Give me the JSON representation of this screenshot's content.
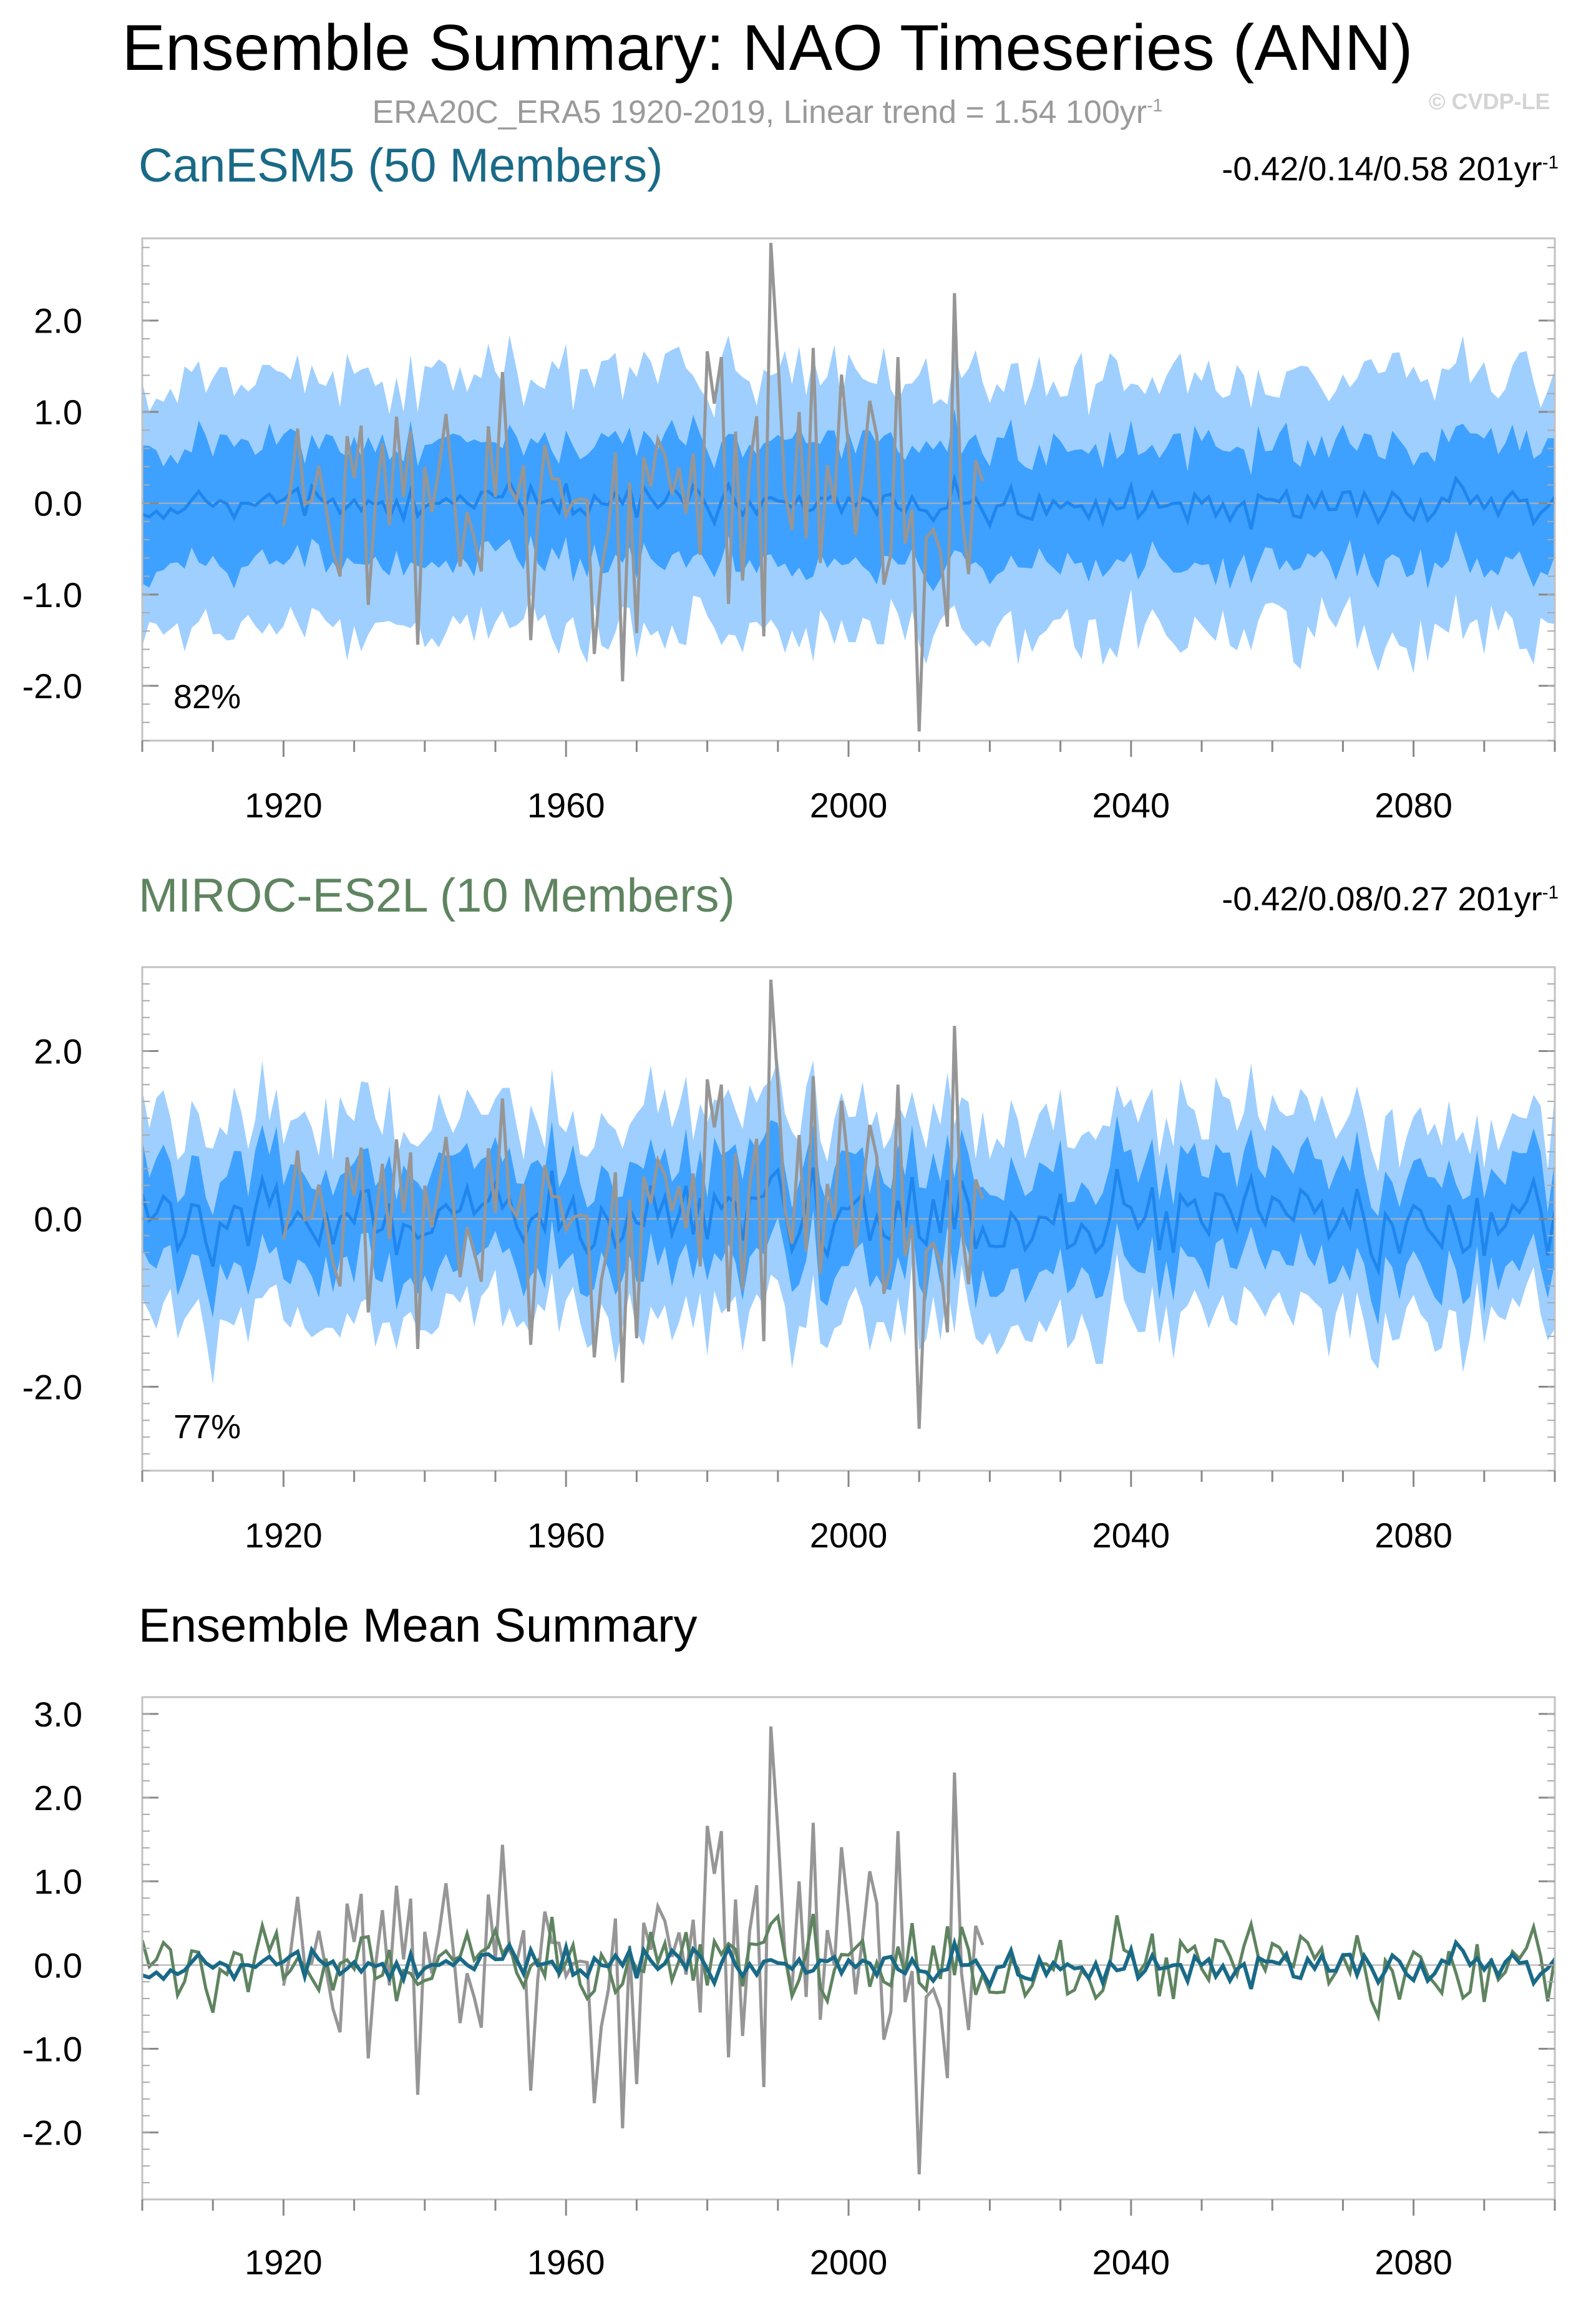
{
  "title": "Ensemble Summary: NAO Timeseries (ANN)",
  "subtitle": "ERA20C_ERA5 1920-2019, Linear trend = 1.54 100yr",
  "subtitle_sup": "-1",
  "copyright": "© CVDP-LE",
  "colors": {
    "band_outer": "#9fcfff",
    "band_inner": "#3ea1ff",
    "member_mean": "#1f86ee",
    "observations": "#969696",
    "canesm5": "#196a87",
    "miroc": "#5e8460",
    "zero_line": "#b0b0b0",
    "frame": "#c2c2c2"
  },
  "panels": [
    {
      "title": "CanESM5 (50 Members)",
      "trend": "-0.42/0.14/0.58 201yr",
      "trend_sup": "-1",
      "percent": "82%"
    },
    {
      "title": "MIROC-ES2L (10 Members)",
      "trend": "-0.42/0.08/0.27 201yr",
      "trend_sup": "-1",
      "percent": "77%"
    },
    {
      "title": "Ensemble Mean Summary"
    }
  ],
  "chart_data": [
    {
      "type": "area",
      "chart": "CanESM5 ensemble spread",
      "x_range": [
        1900,
        2100
      ],
      "ylim": [
        -2.6,
        2.9
      ],
      "y_ticks": [
        "2.0",
        "1.0",
        "0.0",
        "-1.0",
        "-2.0"
      ],
      "x_ticks": [
        "1920",
        "1960",
        "2000",
        "2040",
        "2080"
      ],
      "bands": {
        "outer_half_width": 1.4,
        "inner_half_width": 0.65
      },
      "mean_amplitude": 0.15,
      "observations_years": [
        1920,
        2019
      ],
      "observations_max": 2.85,
      "observations_min": -2.5
    },
    {
      "type": "area",
      "chart": "MIROC-ES2L ensemble spread",
      "x_range": [
        1900,
        2100
      ],
      "ylim": [
        -3.0,
        3.0
      ],
      "y_ticks": [
        "2.0",
        "0.0",
        "-2.0"
      ],
      "x_ticks": [
        "1920",
        "1960",
        "2000",
        "2040",
        "2080"
      ],
      "bands": {
        "outer_half_width": 1.2,
        "inner_half_width": 0.6
      },
      "mean_amplitude": 0.35,
      "observations_years": [
        1920,
        2019
      ],
      "observations_max": 2.85,
      "observations_min": -2.5
    },
    {
      "type": "line",
      "chart": "Ensemble means",
      "x_range": [
        1900,
        2100
      ],
      "ylim": [
        -2.8,
        3.2
      ],
      "y_ticks": [
        "3.0",
        "2.0",
        "1.0",
        "0.0",
        "-1.0",
        "-2.0"
      ],
      "x_ticks": [
        "1920",
        "1960",
        "2000",
        "2040",
        "2080"
      ],
      "series_amplitude": {
        "canesm5": 0.15,
        "miroc": 0.35
      },
      "observations_years": [
        1920,
        2019
      ],
      "observations_max": 2.85,
      "observations_min": -2.5
    }
  ]
}
